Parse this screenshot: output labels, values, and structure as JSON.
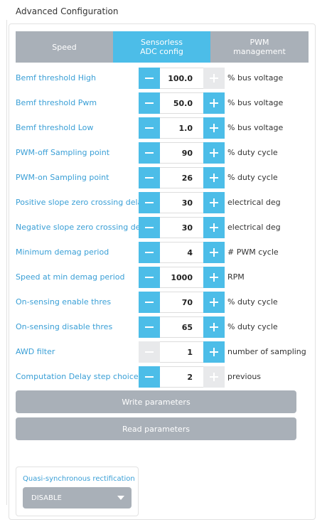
{
  "header": {
    "title": "Advanced Configuration"
  },
  "tabs": [
    {
      "label": "Speed",
      "active": false
    },
    {
      "label": "Sensorless ADC config",
      "active": true
    },
    {
      "label": "PWM management",
      "active": false
    }
  ],
  "rows": [
    {
      "label": "Bemf threshold High",
      "value": "100.0",
      "unit": "% bus voltage",
      "disabled_buttons": [
        "plus"
      ]
    },
    {
      "label": "Bemf threshold Pwm",
      "value": "50.0",
      "unit": "% bus voltage"
    },
    {
      "label": "Bemf threshold Low",
      "value": "1.0",
      "unit": "% bus voltage"
    },
    {
      "label": "PWM-off Sampling point",
      "value": "90",
      "unit": "% duty cycle"
    },
    {
      "label": "PWM-on Sampling point",
      "value": "26",
      "unit": "% duty cycle"
    },
    {
      "label": "Positive slope zero crossing delay",
      "value": "30",
      "unit": "electrical deg"
    },
    {
      "label": "Negative slope zero crossing delay",
      "value": "30",
      "unit": "electrical deg"
    },
    {
      "label": "Minimum demag period",
      "value": "4",
      "unit": "# PWM cycle"
    },
    {
      "label": "Speed at min demag period",
      "value": "1000",
      "unit": "RPM"
    },
    {
      "label": "On-sensing enable thres",
      "value": "70",
      "unit": "% duty cycle"
    },
    {
      "label": "On-sensing disable thres",
      "value": "65",
      "unit": "% duty cycle"
    },
    {
      "label": "AWD filter",
      "value": "1",
      "unit": "number of sampling",
      "disabled_buttons": [
        "minus"
      ]
    },
    {
      "label": "Computation Delay step choice",
      "value": "2",
      "unit": "previous",
      "disabled_buttons": [
        "plus"
      ]
    }
  ],
  "buttons": {
    "write": "Write parameters",
    "read": "Read parameters"
  },
  "rectification": {
    "label": "Quasi-synchronous rectification",
    "selected": "DISABLE"
  }
}
